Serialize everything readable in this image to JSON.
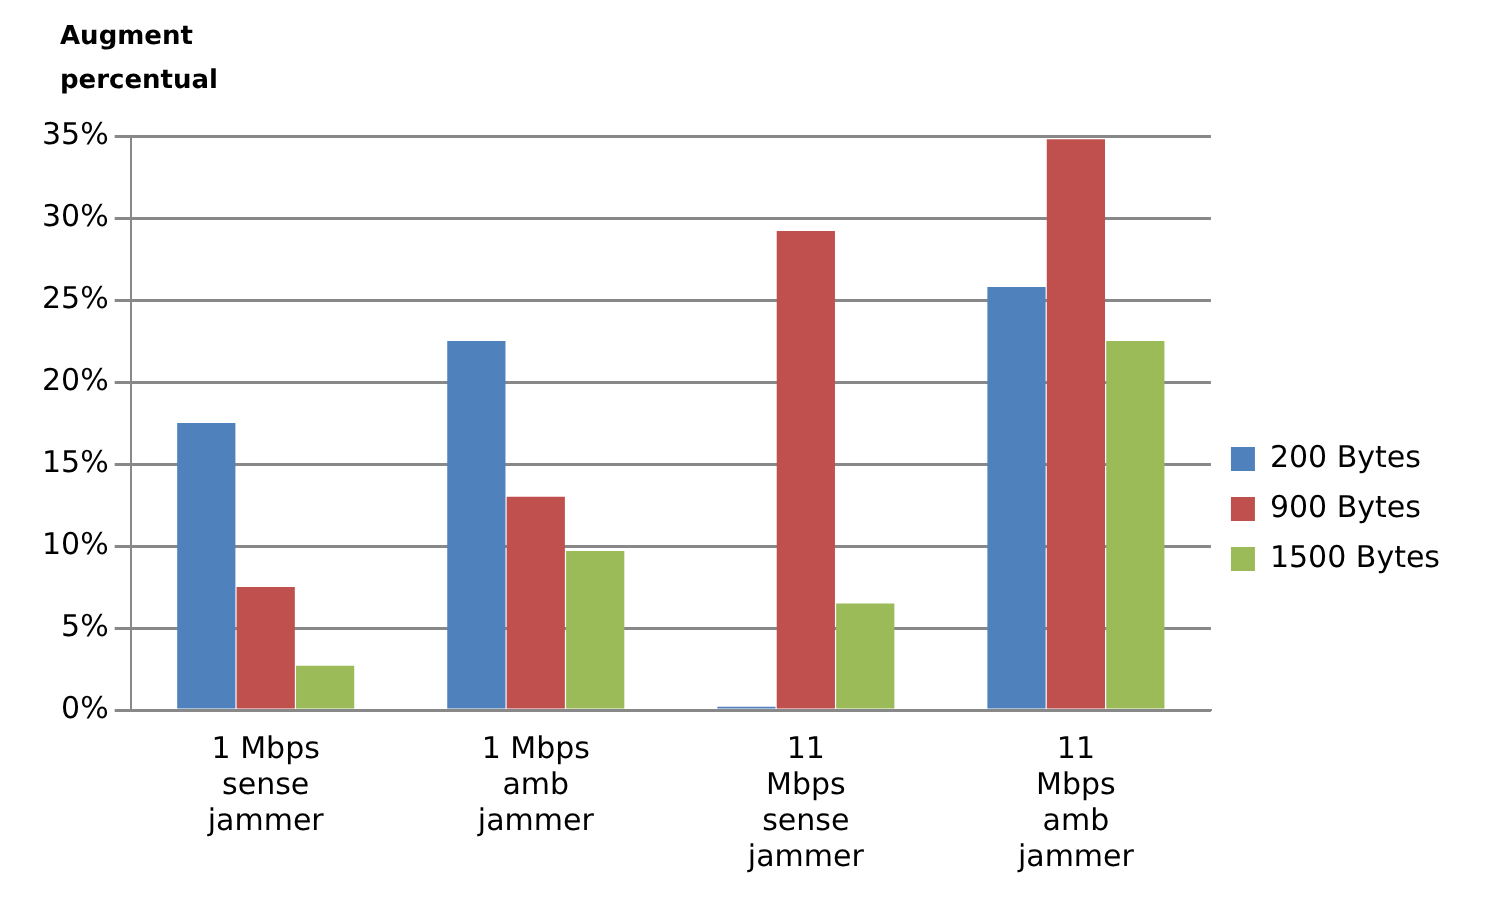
{
  "chart_data": {
    "type": "bar",
    "ylabel": "Augment percentual",
    "categories": [
      "1 Mbps sense jammer",
      "1 Mbps amb jammer",
      "11 Mbps sense jammer",
      "11 Mbps amb jammer"
    ],
    "series": [
      {
        "name": "200 Bytes",
        "color": "#4f81bd",
        "values": [
          17.5,
          22.5,
          0.2,
          25.8
        ]
      },
      {
        "name": "900 Bytes",
        "color": "#c0504d",
        "values": [
          7.5,
          13,
          29.2,
          34.8
        ]
      },
      {
        "name": "1500 Bytes",
        "color": "#9bbb59",
        "values": [
          2.7,
          9.7,
          6.5,
          22.5
        ]
      }
    ],
    "ylim": [
      0,
      35
    ],
    "yticks": [
      {
        "value": 0,
        "label": "0%"
      },
      {
        "value": 5,
        "label": "5%"
      },
      {
        "value": 10,
        "label": "10%"
      },
      {
        "value": 15,
        "label": "15%"
      },
      {
        "value": 20,
        "label": "20%"
      },
      {
        "value": 25,
        "label": "25%"
      },
      {
        "value": 30,
        "label": "30%"
      },
      {
        "value": 35,
        "label": "35%"
      }
    ],
    "grid": "y",
    "legend": "right"
  }
}
